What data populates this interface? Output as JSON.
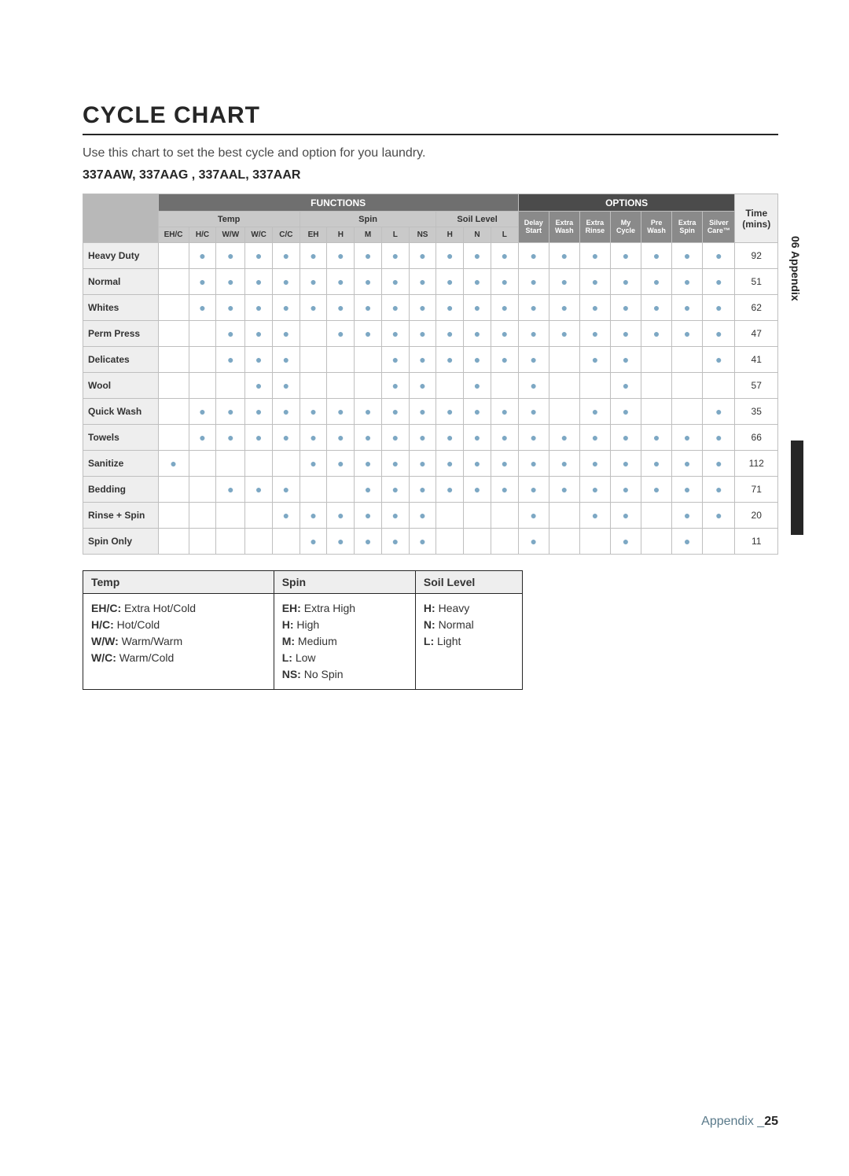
{
  "title": "CYCLE CHART",
  "subtitle": "Use this chart to set the best cycle and option for you laundry.",
  "models": "337AAW, 337AAG , 337AAL, 337AAR",
  "dot_color": "#7da8c4",
  "headers": {
    "functions": "FUNCTIONS",
    "options": "OPTIONS",
    "time": "Time",
    "time_unit": "(mins)",
    "temp": "Temp",
    "spin": "Spin",
    "soil": "Soil Level",
    "temp_cols": [
      "EH/C",
      "H/C",
      "W/W",
      "W/C",
      "C/C"
    ],
    "spin_cols": [
      "EH",
      "H",
      "M",
      "L",
      "NS"
    ],
    "soil_cols": [
      "H",
      "N",
      "L"
    ],
    "opt_cols": [
      "Delay Start",
      "Extra Wash",
      "Extra Rinse",
      "My Cycle",
      "Pre Wash",
      "Extra Spin",
      "Silver Care™"
    ]
  },
  "rows": [
    {
      "name": "Heavy Duty",
      "temp": [
        0,
        1,
        1,
        1,
        1
      ],
      "spin": [
        1,
        1,
        1,
        1,
        1
      ],
      "soil": [
        1,
        1,
        1
      ],
      "opts": [
        1,
        1,
        1,
        1,
        1,
        1,
        1
      ],
      "time": 92
    },
    {
      "name": "Normal",
      "temp": [
        0,
        1,
        1,
        1,
        1
      ],
      "spin": [
        1,
        1,
        1,
        1,
        1
      ],
      "soil": [
        1,
        1,
        1
      ],
      "opts": [
        1,
        1,
        1,
        1,
        1,
        1,
        1
      ],
      "time": 51
    },
    {
      "name": "Whites",
      "temp": [
        0,
        1,
        1,
        1,
        1
      ],
      "spin": [
        1,
        1,
        1,
        1,
        1
      ],
      "soil": [
        1,
        1,
        1
      ],
      "opts": [
        1,
        1,
        1,
        1,
        1,
        1,
        1
      ],
      "time": 62
    },
    {
      "name": "Perm Press",
      "temp": [
        0,
        0,
        1,
        1,
        1
      ],
      "spin": [
        0,
        1,
        1,
        1,
        1
      ],
      "soil": [
        1,
        1,
        1
      ],
      "opts": [
        1,
        1,
        1,
        1,
        1,
        1,
        1
      ],
      "time": 47
    },
    {
      "name": "Delicates",
      "temp": [
        0,
        0,
        1,
        1,
        1
      ],
      "spin": [
        0,
        0,
        0,
        1,
        1
      ],
      "soil": [
        1,
        1,
        1
      ],
      "opts": [
        1,
        0,
        1,
        1,
        0,
        0,
        1
      ],
      "time": 41
    },
    {
      "name": "Wool",
      "temp": [
        0,
        0,
        0,
        1,
        1
      ],
      "spin": [
        0,
        0,
        0,
        1,
        1
      ],
      "soil": [
        0,
        1,
        0
      ],
      "opts": [
        1,
        0,
        0,
        1,
        0,
        0,
        0
      ],
      "time": 57
    },
    {
      "name": "Quick Wash",
      "temp": [
        0,
        1,
        1,
        1,
        1
      ],
      "spin": [
        1,
        1,
        1,
        1,
        1
      ],
      "soil": [
        1,
        1,
        1
      ],
      "opts": [
        1,
        0,
        1,
        1,
        0,
        0,
        1
      ],
      "time": 35
    },
    {
      "name": "Towels",
      "temp": [
        0,
        1,
        1,
        1,
        1
      ],
      "spin": [
        1,
        1,
        1,
        1,
        1
      ],
      "soil": [
        1,
        1,
        1
      ],
      "opts": [
        1,
        1,
        1,
        1,
        1,
        1,
        1
      ],
      "time": 66
    },
    {
      "name": "Sanitize",
      "temp": [
        1,
        0,
        0,
        0,
        0
      ],
      "spin": [
        1,
        1,
        1,
        1,
        1
      ],
      "soil": [
        1,
        1,
        1
      ],
      "opts": [
        1,
        1,
        1,
        1,
        1,
        1,
        1
      ],
      "time": 112
    },
    {
      "name": "Bedding",
      "temp": [
        0,
        0,
        1,
        1,
        1
      ],
      "spin": [
        0,
        0,
        1,
        1,
        1
      ],
      "soil": [
        1,
        1,
        1
      ],
      "opts": [
        1,
        1,
        1,
        1,
        1,
        1,
        1
      ],
      "time": 71
    },
    {
      "name": "Rinse + Spin",
      "temp": [
        0,
        0,
        0,
        0,
        1
      ],
      "spin": [
        1,
        1,
        1,
        1,
        1
      ],
      "soil": [
        0,
        0,
        0
      ],
      "opts": [
        1,
        0,
        1,
        1,
        0,
        1,
        1
      ],
      "time": 20
    },
    {
      "name": "Spin Only",
      "temp": [
        0,
        0,
        0,
        0,
        0
      ],
      "spin": [
        1,
        1,
        1,
        1,
        1
      ],
      "soil": [
        0,
        0,
        0
      ],
      "opts": [
        1,
        0,
        0,
        1,
        0,
        1,
        0
      ],
      "time": 11
    }
  ],
  "legend": {
    "head": [
      "Temp",
      "Spin",
      "Soil Level"
    ],
    "temp": [
      [
        "EH/C:",
        "Extra Hot/Cold"
      ],
      [
        "H/C:",
        "Hot/Cold"
      ],
      [
        "W/W:",
        "Warm/Warm"
      ],
      [
        "W/C:",
        "Warm/Cold"
      ]
    ],
    "spin": [
      [
        "EH:",
        "Extra High"
      ],
      [
        "H:",
        "High"
      ],
      [
        "M:",
        "Medium"
      ],
      [
        "L:",
        "Low"
      ],
      [
        "NS:",
        "No Spin"
      ]
    ],
    "soil": [
      [
        "H:",
        "Heavy"
      ],
      [
        "N:",
        "Normal"
      ],
      [
        "L:",
        "Light"
      ]
    ]
  },
  "side_tab": "06 Appendix",
  "footer_label": "Appendix _",
  "footer_page": "25"
}
